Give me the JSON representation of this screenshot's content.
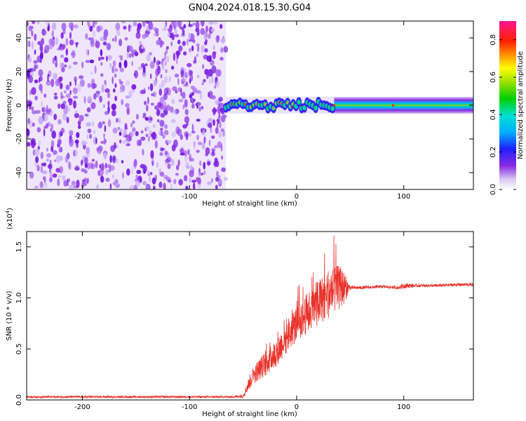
{
  "title": "GN04.2024.018.15.30.G04",
  "chart_data": [
    {
      "type": "heatmap",
      "xlabel": "Height of straight line (km)",
      "ylabel": "Frequency (Hz)",
      "xlim": [
        -252,
        165
      ],
      "ylim": [
        -50,
        50
      ],
      "xticks": [
        -200,
        -100,
        0,
        100
      ],
      "xtick_labels": [
        "-200",
        "-100",
        "0",
        "100"
      ],
      "yticks": [
        -40,
        -20,
        0,
        20,
        40
      ],
      "ytick_labels": [
        "-40",
        "-20",
        "0",
        "20",
        "40"
      ],
      "noise_region_x": [
        -252,
        -66
      ],
      "signal_region_x": [
        -66,
        165
      ],
      "signal_center_freq_hz": 0,
      "colorbar": {
        "label": "Normalized spectral amplitude",
        "range": [
          0.0,
          0.9
        ],
        "ticks": [
          0.0,
          0.2,
          0.4,
          0.6,
          0.8
        ],
        "tick_labels": [
          "0.0",
          "0.2",
          "0.4",
          "0.6",
          "0.8"
        ],
        "colormap": "rainbow"
      }
    },
    {
      "type": "line",
      "xlabel": "Height of straight line (km)",
      "ylabel": "SNR (10 * v/v)",
      "y_multiplier": "(x10",
      "y_multiplier_exp": "4",
      "y_multiplier_close": ")",
      "xlim": [
        -252,
        165
      ],
      "ylim": [
        0,
        1.65
      ],
      "xticks": [
        -200,
        -100,
        0,
        100
      ],
      "xtick_labels": [
        "-200",
        "-100",
        "0",
        "100"
      ],
      "yticks": [
        0.0,
        0.5,
        1.0,
        1.5
      ],
      "ytick_labels": [
        "0.0",
        "0.5",
        "1.0",
        "1.5"
      ],
      "series": [
        {
          "name": "SNR",
          "color": "#e8322a",
          "x": [
            -252,
            -200,
            -150,
            -100,
            -60,
            -50,
            -45,
            -40,
            -30,
            -20,
            -10,
            0,
            10,
            20,
            30,
            40,
            45,
            48,
            50,
            60,
            80,
            95,
            100,
            110,
            130,
            150,
            165
          ],
          "y": [
            0.03,
            0.03,
            0.03,
            0.03,
            0.03,
            0.04,
            0.15,
            0.25,
            0.35,
            0.45,
            0.6,
            0.75,
            0.85,
            0.95,
            1.05,
            1.1,
            1.1,
            1.1,
            1.1,
            1.1,
            1.11,
            1.1,
            1.12,
            1.12,
            1.12,
            1.13,
            1.13
          ],
          "noise_amp": [
            0.01,
            0.01,
            0.01,
            0.01,
            0.01,
            0.02,
            0.06,
            0.09,
            0.12,
            0.14,
            0.16,
            0.18,
            0.2,
            0.22,
            0.25,
            0.22,
            0.15,
            0.06,
            0.02,
            0.015,
            0.015,
            0.015,
            0.03,
            0.015,
            0.015,
            0.015,
            0.015
          ]
        }
      ]
    }
  ]
}
